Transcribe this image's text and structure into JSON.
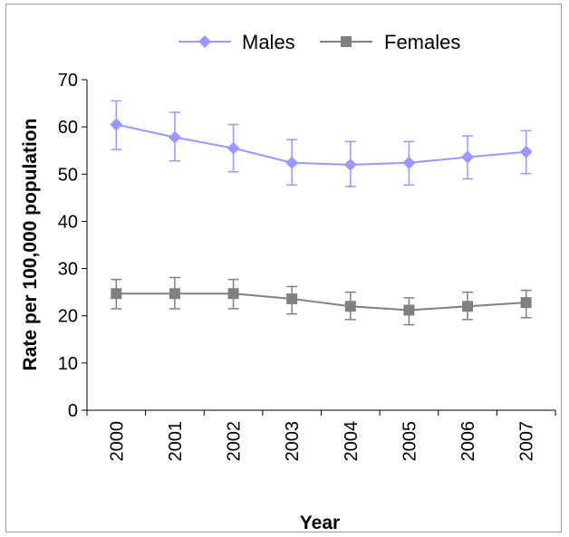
{
  "chart_data": {
    "type": "line",
    "title": "",
    "xlabel": "Year",
    "ylabel": "Rate per 100,000 population",
    "categories": [
      "2000",
      "2001",
      "2002",
      "2003",
      "2004",
      "2005",
      "2006",
      "2007"
    ],
    "ylim": [
      0,
      70
    ],
    "yticks": [
      0,
      10,
      20,
      30,
      40,
      50,
      60,
      70
    ],
    "grid": false,
    "legend_position": "top",
    "series": [
      {
        "name": "Males",
        "color": "#9999ff",
        "marker": "diamond",
        "values": [
          60.5,
          57.8,
          55.5,
          52.4,
          52.0,
          52.4,
          53.6,
          54.7
        ],
        "error_low": [
          55.2,
          52.8,
          50.5,
          47.7,
          47.4,
          47.7,
          49.0,
          50.1
        ],
        "error_high": [
          65.5,
          63.1,
          60.5,
          57.3,
          56.9,
          56.9,
          58.1,
          59.2
        ]
      },
      {
        "name": "Females",
        "color": "#808080",
        "marker": "square",
        "values": [
          24.7,
          24.7,
          24.7,
          23.6,
          22.0,
          21.2,
          22.0,
          22.8
        ],
        "error_low": [
          21.5,
          21.5,
          21.5,
          20.4,
          19.2,
          18.1,
          19.2,
          19.6
        ],
        "error_high": [
          27.7,
          28.1,
          27.7,
          26.2,
          25.0,
          23.8,
          25.0,
          25.4
        ]
      }
    ]
  }
}
